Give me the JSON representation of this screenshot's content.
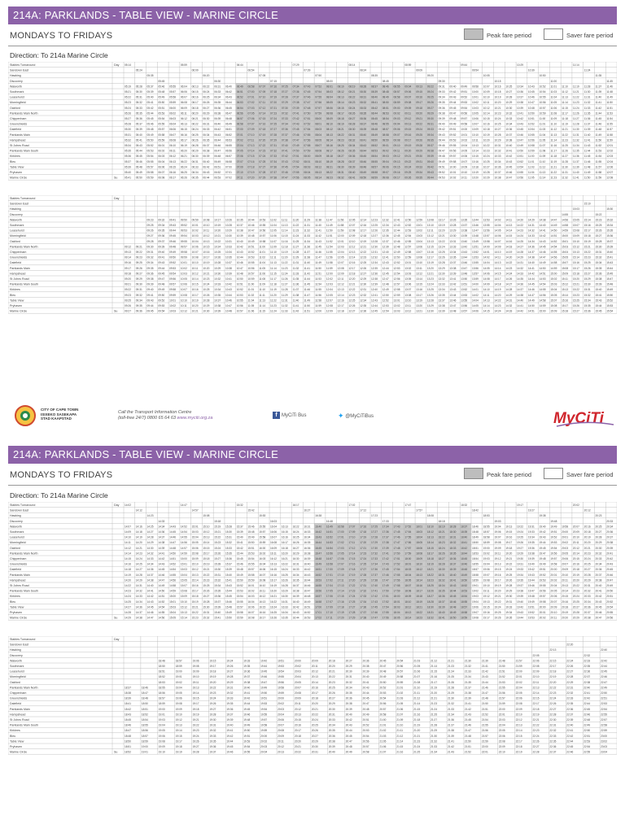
{
  "page_title": "214A: PARKLANDS - TABLE VIEW - MARINE CIRCLE",
  "day_label": "MONDAYS TO FRIDAYS",
  "legend": {
    "peak": "Peak fare period",
    "saver": "Saver fare period"
  },
  "direction": "Direction: To 214a Marine Circle",
  "day_col_label": "Day",
  "day_value": "Su",
  "stops": [
    "Stables Turnaround",
    "Sandown East",
    "Hawking",
    "Discovery",
    "Walworth",
    "Southmark",
    "Leasehurst",
    "Morningfield",
    "Oakford",
    "Parklands Main North",
    "Chippenham",
    "Greenshields",
    "Dalefield",
    "Parklands Main",
    "Hampshead",
    "St Johns Road",
    "Parklands Main South",
    "Kirklees",
    "Bleu",
    "Table View",
    "Pryhaven",
    "Marine Circle"
  ],
  "footer": {
    "city_name": [
      "CITY OF CAPE TOWN",
      "ISIXEKO SASEKAPA",
      "STAD KAAPSTAD"
    ],
    "info_line1": "Call the Transport Information Centre",
    "info_line2": "(toll-free 24/7) 0800 65 64 63",
    "website": "www.myciti.org.za",
    "facebook": "MyCiTi Bus",
    "twitter": "@MyCiTiBus",
    "logo_tagline": "Spend less. Live more. Arrive Happy."
  },
  "panels": [
    {
      "id": "A",
      "start": "05:14",
      "step": 9,
      "cols": 44,
      "peak_from": 10,
      "peak_to": 28,
      "gap": false,
      "sparse": true
    },
    {
      "id": "B",
      "start": "09:00",
      "step": 9,
      "cols": 44,
      "peak_from": -1,
      "peak_to": -1,
      "gap": true,
      "sparse": false
    },
    {
      "id": "C",
      "start": "14:02",
      "step": 9,
      "cols": 44,
      "peak_from": 17,
      "peak_to": 31,
      "gap": false,
      "sparse": true
    },
    {
      "id": "D",
      "start": "18:25",
      "step": 9,
      "cols": 29,
      "peak_from": -1,
      "peak_to": -1,
      "gap": true,
      "sparse": false
    }
  ]
}
